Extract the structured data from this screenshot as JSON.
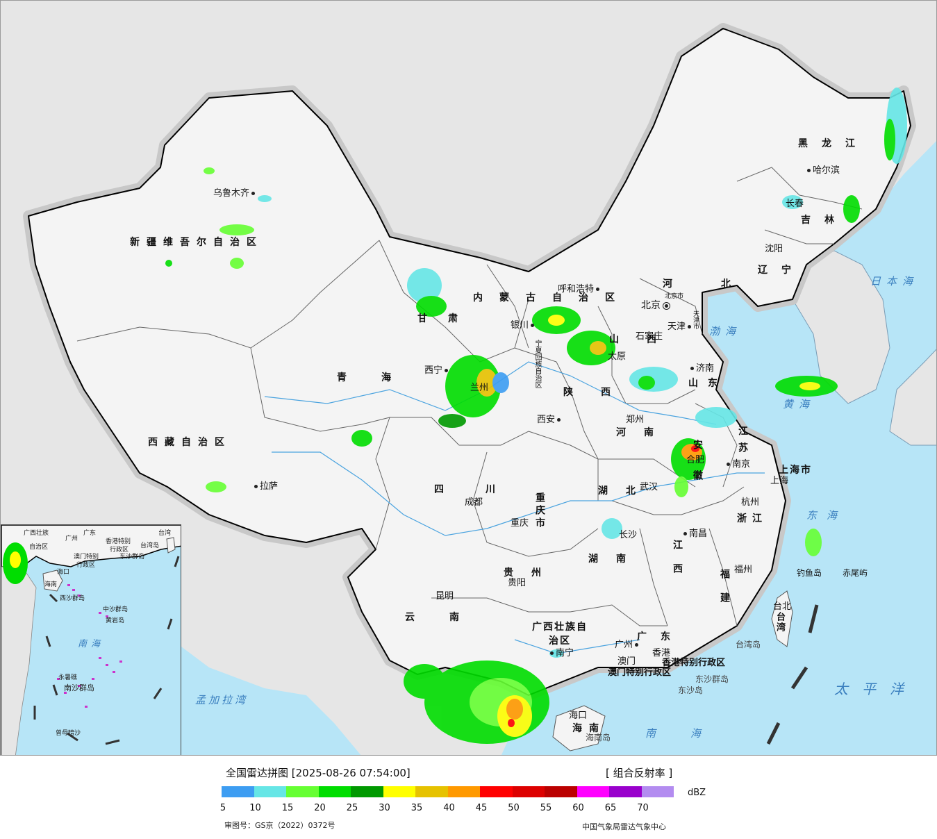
{
  "legend": {
    "title": "全国雷达拼图 [2025-08-26 07:54:00]",
    "product": "[ 组合反射率 ]",
    "unit": "dBZ",
    "approval": "审图号：GS京（2022）0372号",
    "organization": "中国气象局雷达气象中心",
    "ticks": [
      "5",
      "10",
      "15",
      "20",
      "25",
      "30",
      "35",
      "40",
      "45",
      "50",
      "55",
      "60",
      "65",
      "70"
    ],
    "colors": [
      "#3d9df2",
      "#66e6e6",
      "#66ff33",
      "#00dd00",
      "#009900",
      "#ffff00",
      "#e6c200",
      "#ff9900",
      "#ff0000",
      "#dd0000",
      "#bb0000",
      "#ff00ff",
      "#9900cc",
      "#b38cf0"
    ]
  },
  "map": {
    "provinces": [
      "新疆维吾尔自治区",
      "西藏自治区",
      "青海",
      "甘肃",
      "内蒙古自治区",
      "四川",
      "云南",
      "陕西",
      "山西",
      "河北",
      "山东",
      "河南",
      "湖北",
      "湖南",
      "江西",
      "浙江",
      "江苏",
      "安徽",
      "福建",
      "贵州",
      "黑龙江",
      "吉林",
      "辽宁",
      "台湾",
      "海南",
      "广东",
      "宁夏回族自治区",
      "广西壮族自治区",
      "重庆市",
      "上海市",
      "北京市",
      "天津市",
      "香港特别行政区",
      "澳门特别行政区"
    ],
    "cities": {
      "urumqi": "乌鲁木齐",
      "lhasa": "拉萨",
      "xining": "西宁",
      "lanzhou": "兰州",
      "yinchuan": "银川",
      "hohhot": "呼和浩特",
      "beijing": "北京",
      "tianjin": "天津",
      "shijiazhuang": "石家庄",
      "taiyuan": "太原",
      "jinan": "济南",
      "zhengzhou": "郑州",
      "xian": "西安",
      "chengdu": "成都",
      "chongqing": "重庆",
      "guiyang": "贵阳",
      "kunming": "昆明",
      "nanning": "南宁",
      "guangzhou": "广州",
      "macau": "澳门",
      "hongkong": "香港",
      "haikou": "海口",
      "changsha": "长沙",
      "wuhan": "武汉",
      "hefei": "合肥",
      "nanjing": "南京",
      "shanghai": "上海",
      "hangzhou": "杭州",
      "nanchang": "南昌",
      "fuzhou": "福州",
      "taipei": "台北",
      "shenyang": "沈阳",
      "changchun": "长春",
      "harbin": "哈尔滨"
    },
    "islands": [
      "钓鱼岛",
      "赤尾屿",
      "台湾岛",
      "东沙群岛",
      "东沙岛",
      "海南岛"
    ],
    "seas": [
      "渤海",
      "黄海",
      "东海",
      "日本海",
      "太平洋",
      "南海",
      "孟加拉湾"
    ]
  },
  "inset": {
    "labels": [
      "广西壮族",
      "自治区",
      "广州",
      "广东",
      "澳门特别",
      "行政区",
      "香港特别",
      "行政区",
      "台湾",
      "台湾岛",
      "东沙群岛",
      "海南",
      "海口",
      "西沙群岛",
      "中沙群岛",
      "黄岩岛",
      "南海",
      "南沙群岛",
      "曾母暗沙",
      "永暑礁"
    ]
  }
}
